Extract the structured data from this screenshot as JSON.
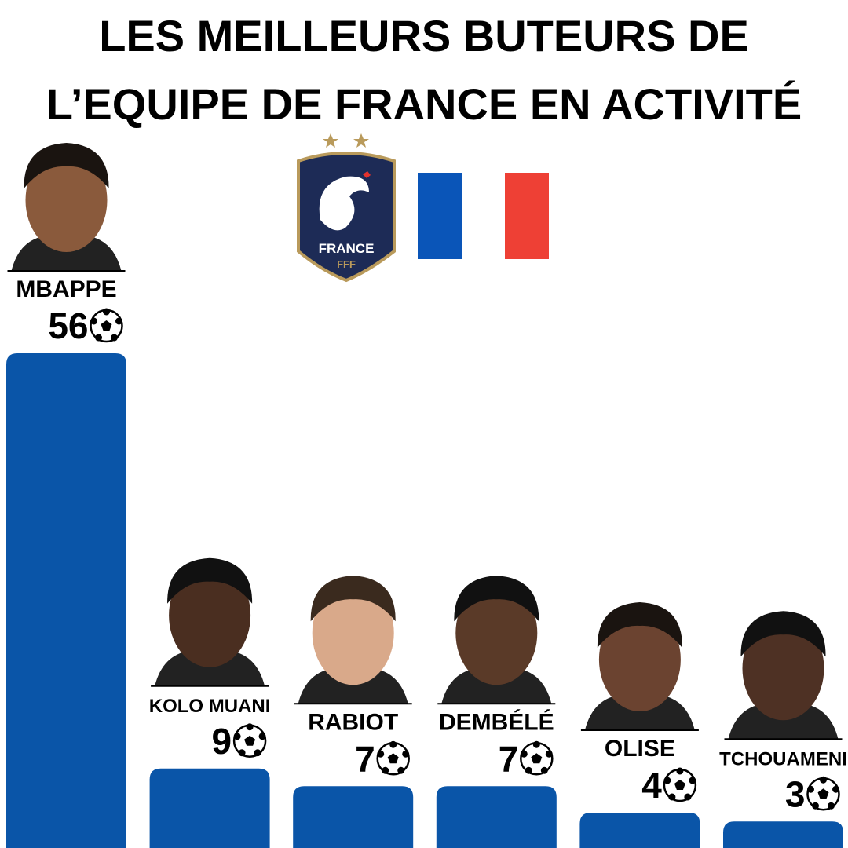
{
  "chart_data": {
    "type": "bar",
    "title": [
      "LES MEILLEURS BUTEURS DE",
      "L’EQUIPE DE FRANCE EN ACTIVITÉ"
    ],
    "logo": {
      "text": "FRANCE",
      "subtext": "FFF"
    },
    "categories": [
      "MBAPPE",
      "KOLO MUANI",
      "RABIOT",
      "DEMBÉLÉ",
      "OLISE",
      "TCHOUAMENI"
    ],
    "values": [
      56,
      9,
      7,
      7,
      4,
      3
    ],
    "color": "#0a55a8"
  }
}
